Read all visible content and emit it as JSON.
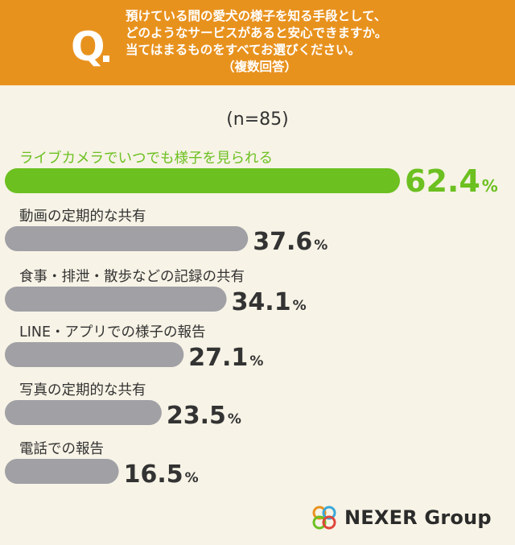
{
  "header": {
    "q_letter": "Q",
    "question_lines": [
      "預けている間の愛犬の様子を知る手段として、",
      "どのようなサービスがあると安心できますか。",
      "当てはまるものをすべてお選びください。"
    ],
    "question_note": "（複数回答）"
  },
  "sample": "(n=85)",
  "colors": {
    "header_bg": "#e8921e",
    "highlight": "#6cc020",
    "bar": "#a0a0a5",
    "background": "#f7f3e6",
    "text": "#333333"
  },
  "chart_data": {
    "type": "bar",
    "orientation": "horizontal",
    "categories": [
      "ライブカメラでいつでも様子を見られる",
      "動画の定期的な共有",
      "食事・排泄・散歩などの記録の共有",
      "LINE・アプリでの様子の報告",
      "写真の定期的な共有",
      "電話での報告"
    ],
    "values": [
      62.4,
      37.6,
      34.1,
      27.1,
      23.5,
      16.5
    ],
    "unit": "%",
    "highlight_index": 0
  },
  "logo": {
    "text": "NEXER Group"
  }
}
